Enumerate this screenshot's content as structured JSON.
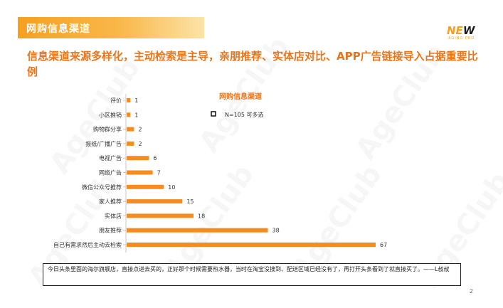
{
  "header": {
    "title": "网购信息渠道"
  },
  "logo": {
    "main_prefix": "NE",
    "main_w": "W",
    "sub": "AGING PRO"
  },
  "headline": "信息渠道来源多样化，主动检索是主导，亲朋推荐、实体店对比、APP广告链接导入占据重要比例",
  "chart_data": {
    "type": "bar",
    "orientation": "horizontal",
    "title": "网购信息渠道",
    "legend": {
      "marker": "hollow-square",
      "text": "N=105  可多选",
      "placement": "top-right"
    },
    "categories": [
      "评价",
      "小区推销",
      "购物群分享",
      "报纸/广播广告",
      "电视广告",
      "网络广告",
      "微信公众号推荐",
      "家人推荐",
      "实体店",
      "朋友推荐",
      "自己有需求然后主动去检索"
    ],
    "values": [
      1,
      1,
      2,
      2,
      6,
      7,
      10,
      15,
      18,
      38,
      67
    ],
    "bar_color": "#f68b1f",
    "xlim": [
      0,
      67
    ],
    "grid": false
  },
  "note": "今日头条里面的海尔旗舰店，直接点进去买的，正好那个时候需要热水器，当时在淘宝没搜到、配送区域已经没有了，再打开头条看到了就直接买了。——L叔叔",
  "page_number": "2",
  "watermark": "AgeClub"
}
